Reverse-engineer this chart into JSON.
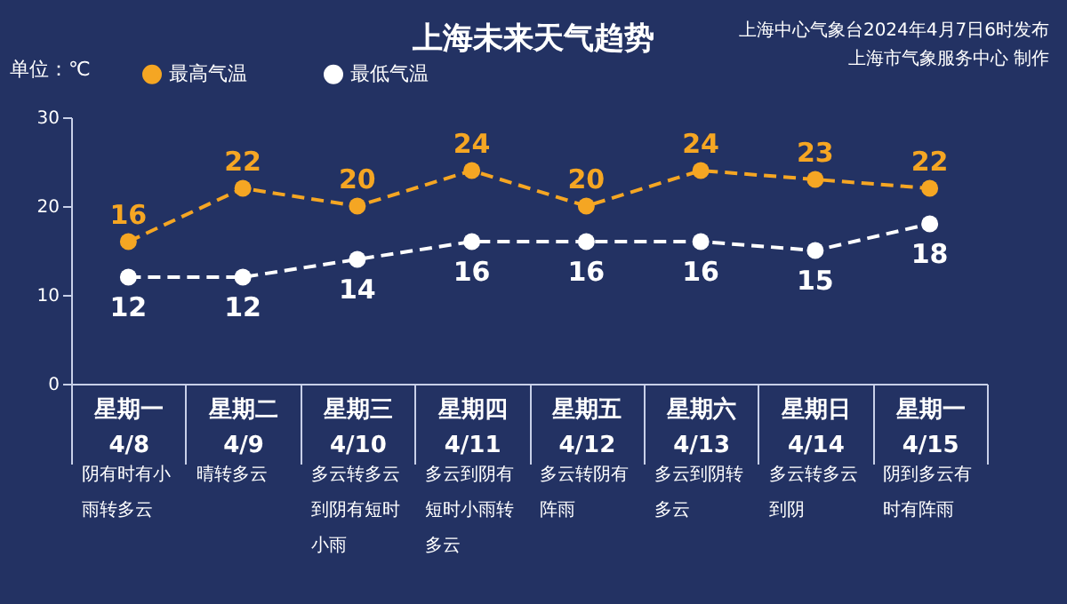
{
  "chart_data": {
    "type": "line",
    "title": "上海未来天气趋势",
    "ylabel": "单位：℃",
    "categories": [
      "星期一\n4/8",
      "星期二\n4/9",
      "星期三\n4/10",
      "星期四\n4/11",
      "星期五\n4/12",
      "星期六\n4/13",
      "星期日\n4/14",
      "星期一\n4/15"
    ],
    "series": [
      {
        "name": "最高气温",
        "color": "#f5a623",
        "values": [
          16,
          22,
          20,
          24,
          20,
          24,
          23,
          22
        ]
      },
      {
        "name": "最低气温",
        "color": "#ffffff",
        "values": [
          12,
          12,
          14,
          16,
          16,
          16,
          15,
          18
        ]
      }
    ],
    "ylim": [
      0,
      30
    ],
    "yticks": [
      0,
      10,
      20,
      30
    ],
    "data_labels": true,
    "legend": "top left",
    "marker": "circle",
    "line_style": "dashed",
    "annotations": [
      "上海中心气象台2024年4月7日6时发布",
      "上海市气象服务中心 制作",
      "阴有时有小雨转多云",
      "晴转多云",
      "多云转多云到阴有短时小雨",
      "多云到阴有短时小雨转多云",
      "多云转阴有阵雨",
      "多云到阴转多云",
      "多云转多云到阴",
      "阴到多云有时有阵雨"
    ]
  }
}
